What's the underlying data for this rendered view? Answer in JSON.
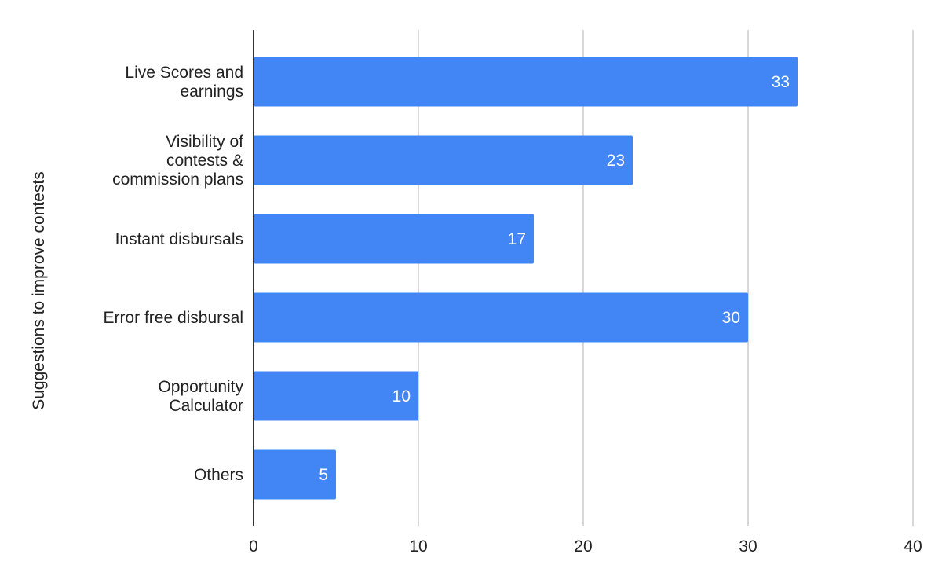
{
  "chart_data": {
    "type": "bar",
    "orientation": "horizontal",
    "categories": [
      [
        "Live Scores and",
        "earnings"
      ],
      [
        "Visibility of",
        "contests &",
        "commission plans"
      ],
      [
        "Instant disbursals"
      ],
      [
        "Error free disbursal"
      ],
      [
        "Opportunity",
        "Calculator"
      ],
      [
        "Others"
      ]
    ],
    "values": [
      33,
      23,
      17,
      30,
      10,
      5
    ],
    "data_labels": [
      "33",
      "23",
      "17",
      "30",
      "10",
      "5"
    ],
    "xlabel": "",
    "ylabel": "Suggestions to improve contests",
    "xlim": [
      0,
      40
    ],
    "xticks": [
      0,
      10,
      20,
      30,
      40
    ],
    "grid": "vertical",
    "legend": "none",
    "bar_color": "#4285f4",
    "gridline_color": "#cccccc",
    "axis_color": "#333333"
  }
}
